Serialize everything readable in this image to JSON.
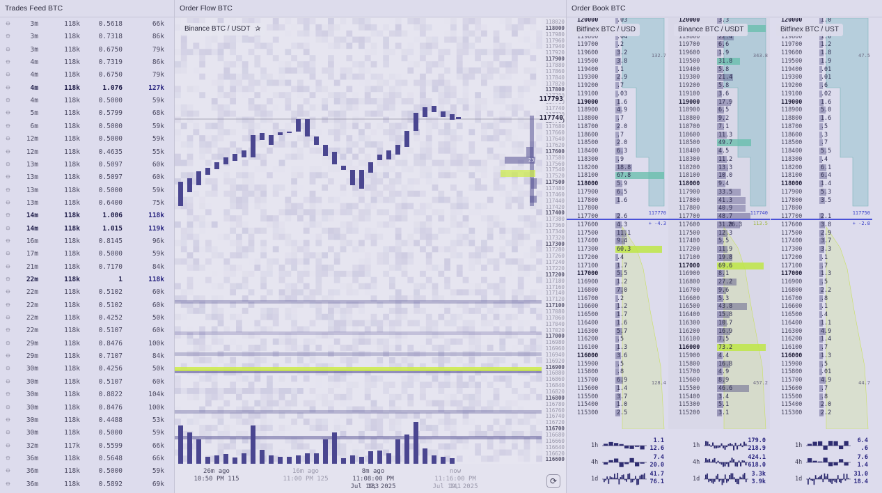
{
  "trades": {
    "title": "Trades Feed BTC",
    "rows": [
      {
        "t": "3m",
        "p": "118k",
        "q": "0.5618",
        "v": "66k",
        "bold": false
      },
      {
        "t": "3m",
        "p": "118k",
        "q": "0.7318",
        "v": "86k",
        "bold": false
      },
      {
        "t": "3m",
        "p": "118k",
        "q": "0.6750",
        "v": "79k",
        "bold": false
      },
      {
        "t": "4m",
        "p": "118k",
        "q": "0.7319",
        "v": "86k",
        "bold": false
      },
      {
        "t": "4m",
        "p": "118k",
        "q": "0.6750",
        "v": "79k",
        "bold": false
      },
      {
        "t": "4m",
        "p": "118k",
        "q": "1.076",
        "v": "127k",
        "bold": true
      },
      {
        "t": "4m",
        "p": "118k",
        "q": "0.5000",
        "v": "59k",
        "bold": false
      },
      {
        "t": "5m",
        "p": "118k",
        "q": "0.5799",
        "v": "68k",
        "bold": false
      },
      {
        "t": "6m",
        "p": "118k",
        "q": "0.5000",
        "v": "59k",
        "bold": false
      },
      {
        "t": "12m",
        "p": "118k",
        "q": "0.5000",
        "v": "59k",
        "bold": false
      },
      {
        "t": "12m",
        "p": "118k",
        "q": "0.4635",
        "v": "55k",
        "bold": false
      },
      {
        "t": "13m",
        "p": "118k",
        "q": "0.5097",
        "v": "60k",
        "bold": false
      },
      {
        "t": "13m",
        "p": "118k",
        "q": "0.5097",
        "v": "60k",
        "bold": false
      },
      {
        "t": "13m",
        "p": "118k",
        "q": "0.5000",
        "v": "59k",
        "bold": false
      },
      {
        "t": "13m",
        "p": "118k",
        "q": "0.6400",
        "v": "75k",
        "bold": false
      },
      {
        "t": "14m",
        "p": "118k",
        "q": "1.006",
        "v": "118k",
        "bold": true
      },
      {
        "t": "14m",
        "p": "118k",
        "q": "1.015",
        "v": "119k",
        "bold": true
      },
      {
        "t": "16m",
        "p": "118k",
        "q": "0.8145",
        "v": "96k",
        "bold": false
      },
      {
        "t": "17m",
        "p": "118k",
        "q": "0.5000",
        "v": "59k",
        "bold": false
      },
      {
        "t": "21m",
        "p": "118k",
        "q": "0.7170",
        "v": "84k",
        "bold": false
      },
      {
        "t": "22m",
        "p": "118k",
        "q": "1",
        "v": "118k",
        "bold": true
      },
      {
        "t": "22m",
        "p": "118k",
        "q": "0.5102",
        "v": "60k",
        "bold": false
      },
      {
        "t": "22m",
        "p": "118k",
        "q": "0.5102",
        "v": "60k",
        "bold": false
      },
      {
        "t": "22m",
        "p": "118k",
        "q": "0.4252",
        "v": "50k",
        "bold": false
      },
      {
        "t": "22m",
        "p": "118k",
        "q": "0.5107",
        "v": "60k",
        "bold": false
      },
      {
        "t": "29m",
        "p": "118k",
        "q": "0.8476",
        "v": "100k",
        "bold": false
      },
      {
        "t": "29m",
        "p": "118k",
        "q": "0.7107",
        "v": "84k",
        "bold": false
      },
      {
        "t": "30m",
        "p": "118k",
        "q": "0.4256",
        "v": "50k",
        "bold": false
      },
      {
        "t": "30m",
        "p": "118k",
        "q": "0.5107",
        "v": "60k",
        "bold": false
      },
      {
        "t": "30m",
        "p": "118k",
        "q": "0.8822",
        "v": "104k",
        "bold": false
      },
      {
        "t": "30m",
        "p": "118k",
        "q": "0.8476",
        "v": "100k",
        "bold": false
      },
      {
        "t": "30m",
        "p": "118k",
        "q": "0.4488",
        "v": "53k",
        "bold": false
      },
      {
        "t": "30m",
        "p": "118k",
        "q": "0.5000",
        "v": "59k",
        "bold": false
      },
      {
        "t": "32m",
        "p": "117k",
        "q": "0.5599",
        "v": "66k",
        "bold": false
      },
      {
        "t": "36m",
        "p": "118k",
        "q": "0.5648",
        "v": "66k",
        "bold": false
      },
      {
        "t": "36m",
        "p": "118k",
        "q": "0.5000",
        "v": "59k",
        "bold": false
      },
      {
        "t": "36m",
        "p": "118k",
        "q": "0.5892",
        "v": "69k",
        "bold": false
      }
    ]
  },
  "flow": {
    "title": "Order Flow BTC",
    "exchange_label": "Binance BTC / USDT",
    "axis_prices": [
      "118020",
      "118000",
      "117980",
      "117960",
      "117940",
      "117920",
      "117900",
      "117880",
      "117860",
      "117840",
      "117820",
      "117800",
      "117780",
      "117760",
      "117740",
      "117720",
      "117700",
      "117680",
      "117660",
      "117640",
      "117620",
      "117600",
      "117580",
      "117560",
      "117540",
      "117520",
      "117500",
      "117480",
      "117460",
      "117440",
      "117420",
      "117400",
      "117380",
      "117360",
      "117340",
      "117320",
      "117300",
      "117280",
      "117260",
      "117240",
      "117220",
      "117200",
      "117180",
      "117160",
      "117140",
      "117120",
      "117100",
      "117080",
      "117060",
      "117040",
      "117020",
      "117000",
      "116980",
      "116960",
      "116940",
      "116920",
      "116900",
      "116880",
      "116860",
      "116840",
      "116820",
      "116800",
      "116780",
      "116760",
      "116740",
      "116720",
      "116700",
      "116680",
      "116660",
      "116640",
      "116620",
      "116600"
    ],
    "price_high": "117793",
    "price_current": "117740",
    "depth_marker": "23",
    "time_labels": [
      {
        "top": "26m ago",
        "bottom": "10:50 PM 115",
        "dim": false
      },
      {
        "top": "16m ago",
        "bottom": "11:00 PM 125",
        "dim": true
      },
      {
        "top": "8m ago",
        "bottom": "11:08:00 PM 133",
        "dim": false
      },
      {
        "top": "now",
        "bottom": "11:16:00 PM 141",
        "dim": true
      }
    ],
    "date_labels": [
      "Jul 19, 2025",
      "Jul 19, 2025"
    ],
    "reset_icon": "refresh-icon"
  },
  "book": {
    "title": "Order Book BTC",
    "columns": [
      {
        "name": "Bitfinex BTC / USD",
        "mid_price": "117770",
        "mid_delta": "+ -4.3",
        "depth_top": "132.7",
        "depth_bottom": "128.4",
        "rows": [
          {
            "p": "120000",
            "q": ".03"
          },
          {
            "p": "119900",
            "q": "2.7"
          },
          {
            "p": "119800",
            "q": ".04"
          },
          {
            "p": "119700",
            "q": ".2"
          },
          {
            "p": "119600",
            "q": "3.2"
          },
          {
            "p": "119500",
            "q": "3.8"
          },
          {
            "p": "119400",
            "q": ".1"
          },
          {
            "p": "119300",
            "q": "2.9"
          },
          {
            "p": "119200",
            "q": ".7"
          },
          {
            "p": "119100",
            "q": ".03"
          },
          {
            "p": "119000",
            "q": "1.6"
          },
          {
            "p": "118900",
            "q": "4.9"
          },
          {
            "p": "118800",
            "q": ".7"
          },
          {
            "p": "118700",
            "q": "2.0"
          },
          {
            "p": "118600",
            "q": ".7"
          },
          {
            "p": "118500",
            "q": "2.0"
          },
          {
            "p": "118400",
            "q": "6.3"
          },
          {
            "p": "118300",
            "q": ".9"
          },
          {
            "p": "118200",
            "q": "18.8"
          },
          {
            "p": "118100",
            "q": "67.8"
          },
          {
            "p": "118000",
            "q": "5.9"
          },
          {
            "p": "117900",
            "q": "6.5"
          },
          {
            "p": "117800",
            "q": "1.6"
          },
          {
            "p": "117800",
            "q": ""
          },
          {
            "p": "117700",
            "q": "2.6"
          },
          {
            "p": "117600",
            "q": "4.3"
          },
          {
            "p": "117500",
            "q": "11.1"
          },
          {
            "p": "117400",
            "q": "9.4"
          },
          {
            "p": "117300",
            "q": "60.3"
          },
          {
            "p": "117200",
            "q": ".4"
          },
          {
            "p": "117100",
            "q": "1.7"
          },
          {
            "p": "117000",
            "q": "5.5"
          },
          {
            "p": "116900",
            "q": "1.2"
          },
          {
            "p": "116800",
            "q": "7.0"
          },
          {
            "p": "116700",
            "q": ".2"
          },
          {
            "p": "116600",
            "q": "1.2"
          },
          {
            "p": "116500",
            "q": "1.7"
          },
          {
            "p": "116400",
            "q": "1.6"
          },
          {
            "p": "116300",
            "q": "5.7"
          },
          {
            "p": "116200",
            "q": ".5"
          },
          {
            "p": "116100",
            "q": "1.3"
          },
          {
            "p": "116000",
            "q": "3.6"
          },
          {
            "p": "115900",
            "q": ".5"
          },
          {
            "p": "115800",
            "q": ".8"
          },
          {
            "p": "115700",
            "q": "6.9"
          },
          {
            "p": "115600",
            "q": "1.4"
          },
          {
            "p": "115500",
            "q": "3.7"
          },
          {
            "p": "115400",
            "q": "1.0"
          },
          {
            "p": "115300",
            "q": "2.5"
          }
        ],
        "spark": [
          {
            "label": "1h",
            "v1": "1.1",
            "v2": "12.6"
          },
          {
            "label": "4h",
            "v1": "7.4",
            "v2": "20.0"
          },
          {
            "label": "1d",
            "v1": "41.7",
            "v2": "76.1"
          }
        ]
      },
      {
        "name": "Binance BTC / USDT",
        "mid_price": "117740",
        "mid_delta": "113.5",
        "mid_qty": "26.3",
        "depth_top": "343.8",
        "depth_bottom": "457.2",
        "rows": [
          {
            "p": "120000",
            "q": "3.3"
          },
          {
            "p": "119900",
            "q": "73.0"
          },
          {
            "p": "119800",
            "q": "22.4"
          },
          {
            "p": "119700",
            "q": "6.6"
          },
          {
            "p": "119600",
            "q": "1.9"
          },
          {
            "p": "119500",
            "q": "31.8"
          },
          {
            "p": "119400",
            "q": "5.8"
          },
          {
            "p": "119300",
            "q": "21.4"
          },
          {
            "p": "119200",
            "q": "5.8"
          },
          {
            "p": "119100",
            "q": "3.6"
          },
          {
            "p": "119000",
            "q": "17.9"
          },
          {
            "p": "118900",
            "q": "6.5"
          },
          {
            "p": "118800",
            "q": "9.2"
          },
          {
            "p": "118700",
            "q": "7.1"
          },
          {
            "p": "118600",
            "q": "11.3"
          },
          {
            "p": "118500",
            "q": "49.7"
          },
          {
            "p": "118400",
            "q": "4.5"
          },
          {
            "p": "118300",
            "q": "11.2"
          },
          {
            "p": "118200",
            "q": "13.3"
          },
          {
            "p": "118100",
            "q": "10.0"
          },
          {
            "p": "118000",
            "q": "9.4"
          },
          {
            "p": "117900",
            "q": "33.5"
          },
          {
            "p": "117800",
            "q": "41.3"
          },
          {
            "p": "117800",
            "q": "40.9"
          },
          {
            "p": "117700",
            "q": "48.7"
          },
          {
            "p": "117600",
            "q": "31.8"
          },
          {
            "p": "117500",
            "q": "12.3"
          },
          {
            "p": "117400",
            "q": "5.5"
          },
          {
            "p": "117200",
            "q": "11.9"
          },
          {
            "p": "117100",
            "q": "19.8"
          },
          {
            "p": "117000",
            "q": "69.6"
          },
          {
            "p": "116900",
            "q": "8.1"
          },
          {
            "p": "116800",
            "q": "27.2"
          },
          {
            "p": "116700",
            "q": "9.6"
          },
          {
            "p": "116600",
            "q": "5.3"
          },
          {
            "p": "116500",
            "q": "43.8"
          },
          {
            "p": "116400",
            "q": "15.8"
          },
          {
            "p": "116300",
            "q": "10.7"
          },
          {
            "p": "116200",
            "q": "16.9"
          },
          {
            "p": "116100",
            "q": "7.5"
          },
          {
            "p": "116000",
            "q": "73.2"
          },
          {
            "p": "115900",
            "q": "4.4"
          },
          {
            "p": "115800",
            "q": "16.8"
          },
          {
            "p": "115700",
            "q": "4.9"
          },
          {
            "p": "115600",
            "q": "8.9"
          },
          {
            "p": "115500",
            "q": "46.6"
          },
          {
            "p": "115400",
            "q": "3.4"
          },
          {
            "p": "115300",
            "q": "5.1"
          },
          {
            "p": "115200",
            "q": "3.1"
          }
        ],
        "spark": [
          {
            "label": "1h",
            "v1": "179.0",
            "v2": "218.9"
          },
          {
            "label": "4h",
            "v1": "424.1",
            "v2": "618.0"
          },
          {
            "label": "1d",
            "v1": "3.3k",
            "v2": "3.9k"
          }
        ]
      },
      {
        "name": "Bitfinex BTC / UST",
        "mid_price": "117750",
        "mid_delta": "+ -2.8",
        "depth_top": "47.5",
        "depth_bottom": "44.7",
        "rows": [
          {
            "p": "120000",
            "q": "1.0"
          },
          {
            "p": "119900",
            "q": "1.0"
          },
          {
            "p": "119800",
            "q": "1.0"
          },
          {
            "p": "119700",
            "q": "1.2"
          },
          {
            "p": "119600",
            "q": "1.8"
          },
          {
            "p": "119500",
            "q": "1.9"
          },
          {
            "p": "119400",
            "q": ".01"
          },
          {
            "p": "119300",
            "q": ".01"
          },
          {
            "p": "119200",
            "q": ".6"
          },
          {
            "p": "119100",
            "q": ".02"
          },
          {
            "p": "119000",
            "q": "1.6"
          },
          {
            "p": "118900",
            "q": "5.0"
          },
          {
            "p": "118800",
            "q": "1.6"
          },
          {
            "p": "118700",
            "q": ".5"
          },
          {
            "p": "118600",
            "q": ".3"
          },
          {
            "p": "118500",
            "q": ".7"
          },
          {
            "p": "118400",
            "q": "5.5"
          },
          {
            "p": "118300",
            "q": ".4"
          },
          {
            "p": "118200",
            "q": "6.1"
          },
          {
            "p": "118100",
            "q": "6.4"
          },
          {
            "p": "118000",
            "q": "1.4"
          },
          {
            "p": "117900",
            "q": "5.3"
          },
          {
            "p": "117800",
            "q": "3.5"
          },
          {
            "p": "117800",
            "q": ""
          },
          {
            "p": "117700",
            "q": "2.1"
          },
          {
            "p": "117600",
            "q": "3.8"
          },
          {
            "p": "117500",
            "q": "2.9"
          },
          {
            "p": "117400",
            "q": "3.7"
          },
          {
            "p": "117300",
            "q": "3.3"
          },
          {
            "p": "117200",
            "q": ".1"
          },
          {
            "p": "117100",
            "q": ".7"
          },
          {
            "p": "117000",
            "q": "1.3"
          },
          {
            "p": "116900",
            "q": ".5"
          },
          {
            "p": "116800",
            "q": "2.2"
          },
          {
            "p": "116700",
            "q": ".8"
          },
          {
            "p": "116600",
            "q": ".1"
          },
          {
            "p": "116500",
            "q": ".4"
          },
          {
            "p": "116400",
            "q": "1.1"
          },
          {
            "p": "116300",
            "q": "4.9"
          },
          {
            "p": "116200",
            "q": "1.4"
          },
          {
            "p": "116100",
            "q": ".7"
          },
          {
            "p": "116000",
            "q": "1.3"
          },
          {
            "p": "115900",
            "q": ".5"
          },
          {
            "p": "115800",
            "q": ".01"
          },
          {
            "p": "115700",
            "q": "4.9"
          },
          {
            "p": "115600",
            "q": ".7"
          },
          {
            "p": "115500",
            "q": ".8"
          },
          {
            "p": "115400",
            "q": "2.0"
          },
          {
            "p": "115300",
            "q": "2.2"
          }
        ],
        "spark": [
          {
            "label": "1h",
            "v1": "6.4",
            "v2": ".6"
          },
          {
            "label": "4h",
            "v1": "7.6",
            "v2": "1.4"
          },
          {
            "label": "1d",
            "v1": "31.0",
            "v2": "18.4"
          }
        ]
      }
    ]
  },
  "colors": {
    "accent": "#4a52d8",
    "bid": "#c9e85a",
    "ask": "#6ec9c4",
    "candle": "#4a4690"
  }
}
